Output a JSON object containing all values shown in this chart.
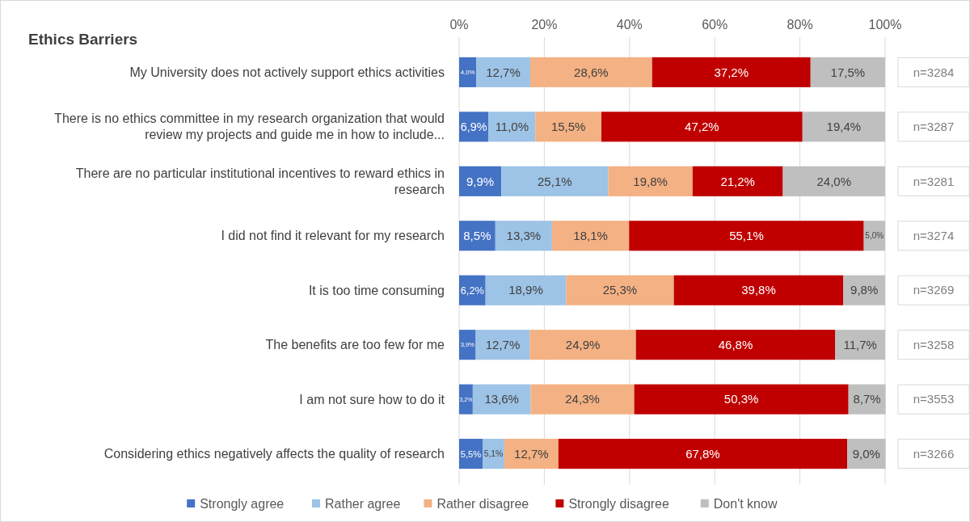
{
  "chart_data": {
    "type": "bar",
    "orientation": "horizontal",
    "stacked": true,
    "title": "Ethics Barriers",
    "categories": [
      "My University does not actively support ethics activities",
      "There is no ethics committee in my research organization that would review my projects and guide me in how to include...",
      "There are no particular institutional incentives to reward ethics in research",
      "I did not find it relevant for my research",
      "It is too time consuming",
      "The benefits are too few for me",
      "I am not sure how to do it",
      "Considering ethics negatively affects the quality of research"
    ],
    "series": [
      {
        "name": "Strongly agree",
        "color": "#4472c4",
        "values": [
          4.0,
          6.9,
          9.9,
          8.5,
          6.2,
          3.9,
          3.2,
          5.5
        ],
        "value_labels": [
          "4,0%",
          "6,9%",
          "9,9%",
          "8,5%",
          "6,2%",
          "3,9%",
          "3,2%",
          "5,5%"
        ]
      },
      {
        "name": "Rather agree",
        "color": "#9dc3e6",
        "values": [
          12.7,
          11.0,
          25.1,
          13.3,
          18.9,
          12.7,
          13.6,
          5.1
        ],
        "value_labels": [
          "12,7%",
          "11,0%",
          "25,1%",
          "13,3%",
          "18,9%",
          "12,7%",
          "13,6%",
          "5,1%"
        ]
      },
      {
        "name": "Rather disagree",
        "color": "#f4b183",
        "values": [
          28.6,
          15.5,
          19.8,
          18.1,
          25.3,
          24.9,
          24.3,
          12.7
        ],
        "value_labels": [
          "28,6%",
          "15,5%",
          "19,8%",
          "18,1%",
          "25,3%",
          "24,9%",
          "24,3%",
          "12,7%"
        ]
      },
      {
        "name": "Strongly disagree",
        "color": "#c00000",
        "values": [
          37.2,
          47.2,
          21.2,
          55.1,
          39.8,
          46.8,
          50.3,
          67.8
        ],
        "value_labels": [
          "37,2%",
          "47,2%",
          "21,2%",
          "55,1%",
          "39,8%",
          "46,8%",
          "50,3%",
          "67,8%"
        ]
      },
      {
        "name": "Don't know",
        "color": "#bfbfbf",
        "values": [
          17.5,
          19.4,
          24.0,
          5.0,
          9.8,
          11.7,
          8.7,
          9.0
        ],
        "value_labels": [
          "17,5%",
          "19,4%",
          "24,0%",
          "5,0%",
          "9,8%",
          "11,7%",
          "8,7%",
          "9,0%"
        ]
      }
    ],
    "xlim": [
      0,
      100
    ],
    "xticks": [
      {
        "value": 0,
        "label": "0%"
      },
      {
        "value": 20,
        "label": "20%"
      },
      {
        "value": 40,
        "label": "40%"
      },
      {
        "value": 60,
        "label": "60%"
      },
      {
        "value": 80,
        "label": "80%"
      },
      {
        "value": 100,
        "label": "100%"
      }
    ],
    "grid": "x",
    "legend": "bottom",
    "annotations": [
      "n=3284",
      "n=3287",
      "n=3281",
      "n=3274",
      "n=3269",
      "n=3258",
      "n=3553",
      "n=3266"
    ]
  }
}
